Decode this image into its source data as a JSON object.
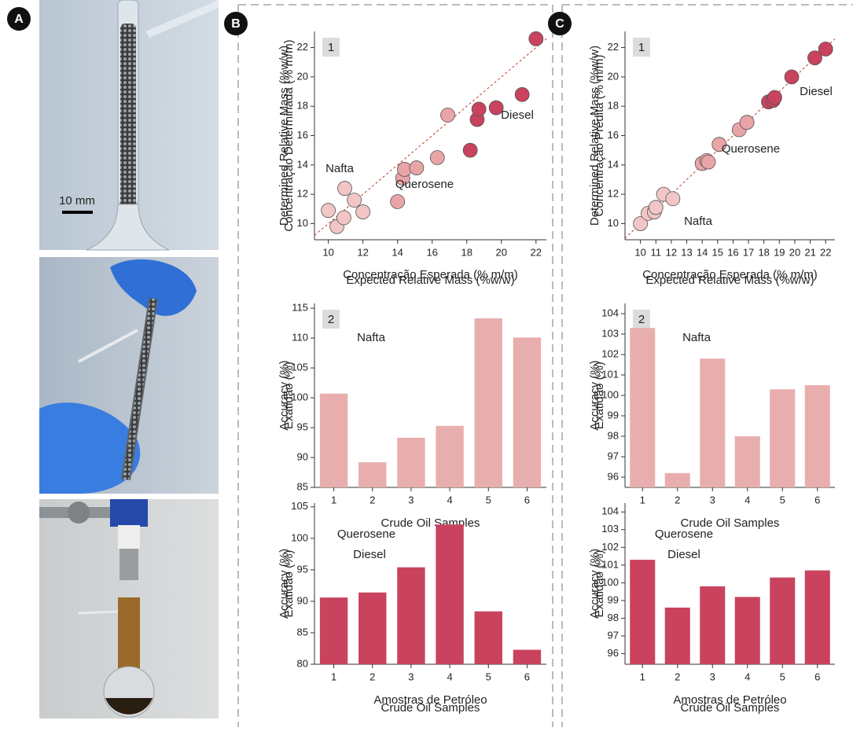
{
  "figure": {
    "panel_labels": [
      "A",
      "B",
      "C"
    ],
    "scale_bar": "10 mm"
  },
  "chart_data": [
    {
      "type": "scatter",
      "panel": "1",
      "xlabel": "Expected Relative Mass (%w/w)",
      "xlabel_alt": "Concentração Esperada (% m/m)",
      "ylabel": "Determined Relative Mass (%w/w)",
      "ylabel_alt": "Concentração Determinada (% m/m)",
      "xlim": [
        9.2,
        22.6
      ],
      "xticks": [
        10,
        12,
        14,
        16,
        18,
        20,
        22
      ],
      "ylim": [
        8.9,
        23.1
      ],
      "yticks": [
        10,
        12,
        14,
        16,
        18,
        20,
        22
      ],
      "series": [
        {
          "name": "Nafta",
          "color": "#f2c6c6",
          "x": [
            10.0,
            10.5,
            10.9,
            10.95,
            11.5,
            12.0
          ],
          "values": [
            10.9,
            9.8,
            10.4,
            12.4,
            11.6,
            10.8
          ]
        },
        {
          "name": "Querosene",
          "color": "#e8a4a6",
          "x": [
            14.0,
            14.3,
            14.4,
            15.1,
            16.3,
            16.9
          ],
          "values": [
            11.5,
            13.1,
            13.7,
            13.8,
            14.5,
            17.4
          ]
        },
        {
          "name": "Diesel",
          "color": "#c9435e",
          "x": [
            18.2,
            18.6,
            18.7,
            19.7,
            21.2,
            22.0
          ],
          "values": [
            15.0,
            17.1,
            17.8,
            17.9,
            18.8,
            22.6
          ]
        }
      ]
    },
    {
      "type": "bar",
      "panel": "2",
      "xlabel": "Crude Oil Samples",
      "ylabel": "Accuracy (%)",
      "ylabel_alt": "Exatidão (%)",
      "categories": [
        "1",
        "2",
        "3",
        "4",
        "5",
        "6"
      ],
      "values": [
        100.7,
        89.2,
        93.3,
        95.3,
        113.3,
        110.1
      ],
      "color": "#e8aeae",
      "ylim": [
        85,
        115.8
      ],
      "yticks": [
        85,
        90,
        95,
        100,
        105,
        110,
        115
      ],
      "annotations": [
        "Nafta"
      ]
    },
    {
      "type": "bar",
      "xlabel": "Amostras de Petróleo",
      "xlabel_alt": "Crude Oil Samples",
      "ylabel": "Accuracy (%)",
      "ylabel_alt": "Exatidão (%)",
      "categories": [
        "1",
        "2",
        "3",
        "4",
        "5",
        "6"
      ],
      "values": [
        90.6,
        91.4,
        95.4,
        102.2,
        88.4,
        82.3
      ],
      "color": "#c9435e",
      "ylim": [
        80,
        105.6
      ],
      "yticks": [
        80,
        85,
        90,
        95,
        100,
        105
      ],
      "annotations": [
        "Querosene",
        "Diesel"
      ]
    },
    {
      "type": "scatter",
      "panel": "1",
      "xlabel": "Expected Relative Mass (%w/w)",
      "xlabel_alt": "Concentração Esperada (% m/m)",
      "ylabel": "Determined Relative Mass (%w/w)",
      "ylabel_alt": "Concentração Predita (% m/m)",
      "xlim": [
        9.0,
        22.6
      ],
      "xticks": [
        10,
        11,
        12,
        13,
        14,
        15,
        16,
        17,
        18,
        19,
        20,
        21,
        22
      ],
      "ylim": [
        8.9,
        23.1
      ],
      "yticks": [
        10,
        12,
        14,
        16,
        18,
        20,
        22
      ],
      "series": [
        {
          "name": "Nafta",
          "color": "#f2c6c6",
          "x": [
            10.0,
            10.5,
            10.9,
            11.0,
            11.5,
            12.1
          ],
          "values": [
            10.0,
            10.7,
            10.8,
            11.1,
            12.0,
            11.7
          ]
        },
        {
          "name": "Querosene",
          "color": "#e8a4a6",
          "x": [
            14.0,
            14.3,
            14.4,
            15.1,
            16.4,
            16.9
          ],
          "values": [
            14.1,
            14.3,
            14.2,
            15.4,
            16.4,
            16.9
          ]
        },
        {
          "name": "Diesel",
          "color": "#c9435e",
          "x": [
            18.3,
            18.6,
            18.7,
            19.8,
            21.3,
            22.0
          ],
          "values": [
            18.3,
            18.4,
            18.6,
            20.0,
            21.3,
            21.9
          ]
        }
      ]
    },
    {
      "type": "bar",
      "panel": "2",
      "xlabel": "Crude Oil Samples",
      "ylabel": "Accuracy (%)",
      "ylabel_alt": "Exatidão (%)",
      "categories": [
        "1",
        "2",
        "3",
        "4",
        "5",
        "6"
      ],
      "values": [
        103.3,
        96.2,
        101.8,
        98.0,
        100.3,
        100.5
      ],
      "color": "#e8aeae",
      "ylim": [
        95.5,
        104.5
      ],
      "yticks": [
        96,
        97,
        98,
        99,
        100,
        101,
        102,
        103,
        104
      ],
      "annotations": [
        "Nafta"
      ]
    },
    {
      "type": "bar",
      "xlabel": "Amostras de Petróleo",
      "xlabel_alt": "Crude Oil Samples",
      "ylabel": "Accuracy (%)",
      "ylabel_alt": "Exatidão (%)",
      "categories": [
        "1",
        "2",
        "3",
        "4",
        "5",
        "6"
      ],
      "values": [
        101.3,
        98.6,
        99.8,
        99.2,
        100.3,
        100.7
      ],
      "color": "#c9435e",
      "ylim": [
        95.4,
        104.5
      ],
      "yticks": [
        96,
        97,
        98,
        99,
        100,
        101,
        102,
        103,
        104
      ],
      "annotations": [
        "Querosene",
        "Diesel"
      ]
    }
  ]
}
